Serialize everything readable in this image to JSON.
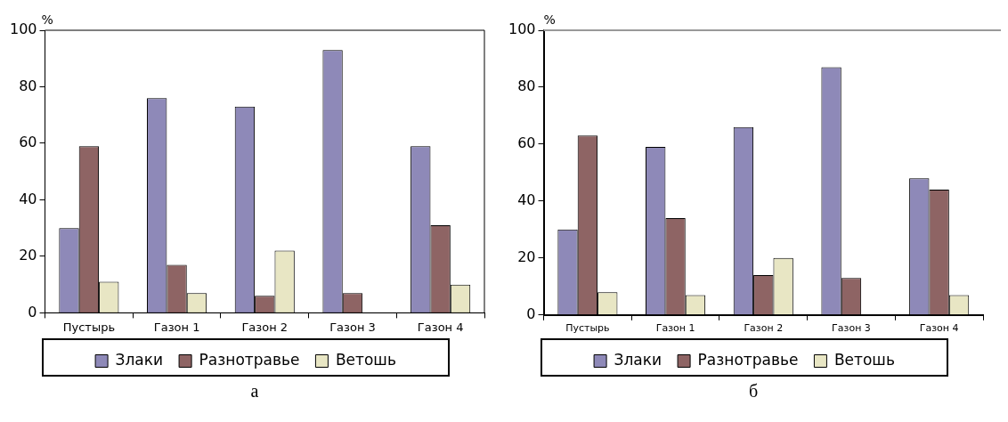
{
  "chart_data": [
    {
      "type": "bar",
      "ylabel": "%",
      "categories": [
        "Пустырь",
        "Газон 1",
        "Газон 2",
        "Газон 3",
        "Газон 4"
      ],
      "ylim": [
        0,
        100
      ],
      "yticks": [
        0,
        20,
        40,
        60,
        80,
        100
      ],
      "grid": false,
      "legend": "bottom",
      "series": [
        {
          "name": "Злаки",
          "color": "#8e89b8",
          "values": [
            30,
            76,
            73,
            93,
            59
          ]
        },
        {
          "name": "Разнотравье",
          "color": "#8e6464",
          "values": [
            59,
            17,
            6,
            7,
            31
          ]
        },
        {
          "name": "Ветошь",
          "color": "#e8e6c4",
          "values": [
            11,
            7,
            22,
            null,
            10
          ]
        }
      ],
      "annotations": [
        "а"
      ]
    },
    {
      "type": "bar",
      "ylabel": "%",
      "categories": [
        "Пустырь",
        "Газон 1",
        "Газон 2",
        "Газон 3",
        "Газон 4"
      ],
      "ylim": [
        0,
        100
      ],
      "yticks": [
        0,
        20,
        40,
        60,
        80,
        100
      ],
      "grid": false,
      "legend": "bottom",
      "series": [
        {
          "name": "Злаки",
          "color": "#8e89b8",
          "values": [
            30,
            59,
            66,
            87,
            48
          ]
        },
        {
          "name": "Разнотравье",
          "color": "#8e6464",
          "values": [
            63,
            34,
            14,
            13,
            44
          ]
        },
        {
          "name": "Ветошь",
          "color": "#e8e6c4",
          "values": [
            8,
            7,
            20,
            null,
            7
          ]
        }
      ],
      "annotations": [
        "б"
      ]
    }
  ]
}
